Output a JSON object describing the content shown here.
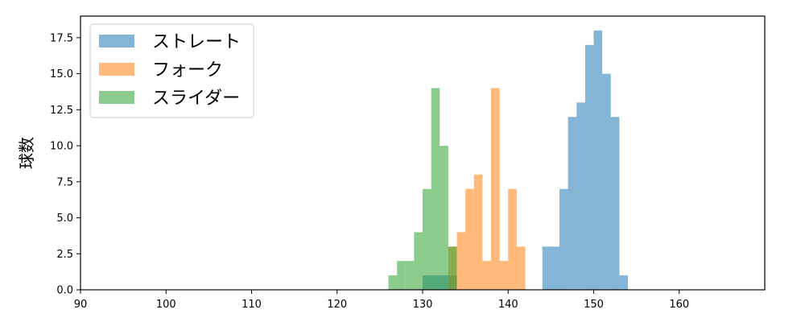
{
  "chart_data": {
    "type": "histogram",
    "title": "",
    "xlabel": "",
    "ylabel": "球数",
    "xlim": [
      90,
      170
    ],
    "ylim": [
      0,
      19
    ],
    "xticks": [
      90,
      100,
      110,
      120,
      130,
      140,
      150,
      160
    ],
    "yticks": [
      0.0,
      2.5,
      5.0,
      7.5,
      10.0,
      12.5,
      15.0,
      17.5
    ],
    "ytick_labels": [
      "0.0",
      "2.5",
      "5.0",
      "7.5",
      "10.0",
      "12.5",
      "15.0",
      "17.5"
    ],
    "legend_position": "upper-left",
    "series": [
      {
        "name": "ストレート",
        "color": "#1f77b4",
        "bins": [
          {
            "x0": 130,
            "x1": 132,
            "y": 1
          },
          {
            "x0": 132,
            "x1": 134,
            "y": 1
          },
          {
            "x0": 144,
            "x1": 146,
            "y": 3
          },
          {
            "x0": 146,
            "x1": 147,
            "y": 7
          },
          {
            "x0": 147,
            "x1": 148,
            "y": 12
          },
          {
            "x0": 148,
            "x1": 149,
            "y": 13
          },
          {
            "x0": 149,
            "x1": 150,
            "y": 17
          },
          {
            "x0": 150,
            "x1": 151,
            "y": 18
          },
          {
            "x0": 151,
            "x1": 152,
            "y": 15
          },
          {
            "x0": 152,
            "x1": 153,
            "y": 12
          },
          {
            "x0": 153,
            "x1": 154,
            "y": 1
          }
        ]
      },
      {
        "name": "フォーク",
        "color": "#ff7f0e",
        "bins": [
          {
            "x0": 133,
            "x1": 134,
            "y": 3
          },
          {
            "x0": 134,
            "x1": 135,
            "y": 4
          },
          {
            "x0": 135,
            "x1": 136,
            "y": 7
          },
          {
            "x0": 136,
            "x1": 137,
            "y": 8
          },
          {
            "x0": 137,
            "x1": 138,
            "y": 2
          },
          {
            "x0": 138,
            "x1": 139,
            "y": 14
          },
          {
            "x0": 139,
            "x1": 140,
            "y": 2
          },
          {
            "x0": 140,
            "x1": 141,
            "y": 7
          },
          {
            "x0": 141,
            "x1": 142,
            "y": 3
          }
        ]
      },
      {
        "name": "スライダー",
        "color": "#2ca02c",
        "bins": [
          {
            "x0": 126,
            "x1": 127,
            "y": 1
          },
          {
            "x0": 127,
            "x1": 128,
            "y": 2
          },
          {
            "x0": 128,
            "x1": 129,
            "y": 2
          },
          {
            "x0": 129,
            "x1": 130,
            "y": 4
          },
          {
            "x0": 130,
            "x1": 131,
            "y": 7
          },
          {
            "x0": 131,
            "x1": 132,
            "y": 14
          },
          {
            "x0": 132,
            "x1": 133,
            "y": 10
          },
          {
            "x0": 133,
            "x1": 134,
            "y": 3
          }
        ]
      }
    ]
  }
}
